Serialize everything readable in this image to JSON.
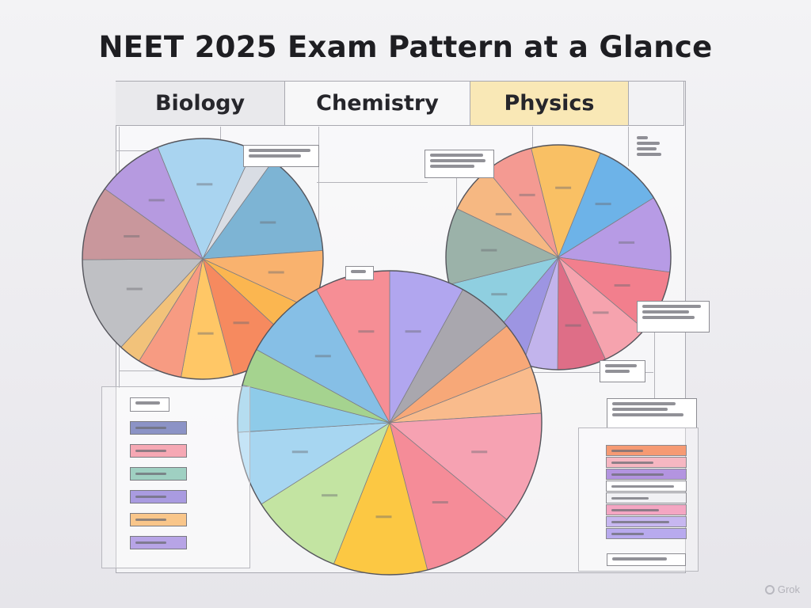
{
  "title": "NEET 2025 Exam Pattern at a Glance",
  "headers": {
    "biology": "Biology",
    "chemistry": "Chemistry",
    "physics": "Physics"
  },
  "watermark": "Grok",
  "colors": {
    "header_highlight": "#f9e8b6",
    "slice_stroke": "#7e7e84"
  },
  "chart_data": [
    {
      "type": "pie",
      "name_ref": "biology",
      "slices": [
        {
          "value": 13,
          "color": "#a9d4f0"
        },
        {
          "value": 3,
          "color": "#d9dde4"
        },
        {
          "value": 14,
          "color": "#7db4d4"
        },
        {
          "value": 8,
          "color": "#f9b26e"
        },
        {
          "value": 5,
          "color": "#fbb650"
        },
        {
          "value": 9,
          "color": "#f68a5f"
        },
        {
          "value": 7,
          "color": "#ffc766"
        },
        {
          "value": 6,
          "color": "#f79b82"
        },
        {
          "value": 3,
          "color": "#f2c27a"
        },
        {
          "value": 13,
          "color": "#bfc0c4"
        },
        {
          "value": 10,
          "color": "#c9979c"
        },
        {
          "value": 9,
          "color": "#b69ae0"
        }
      ]
    },
    {
      "type": "pie",
      "name_ref": "physics",
      "slices": [
        {
          "value": 10,
          "color": "#f9c064"
        },
        {
          "value": 10,
          "color": "#6db3e8"
        },
        {
          "value": 11,
          "color": "#b79be5"
        },
        {
          "value": 9,
          "color": "#f27f8d"
        },
        {
          "value": 7,
          "color": "#f6a3ae"
        },
        {
          "value": 7,
          "color": "#de6e87"
        },
        {
          "value": 5,
          "color": "#c2b4ec"
        },
        {
          "value": 6,
          "color": "#9d95e2"
        },
        {
          "value": 10,
          "color": "#8fcfe0"
        },
        {
          "value": 11,
          "color": "#9bb2a9"
        },
        {
          "value": 7,
          "color": "#f6b882"
        },
        {
          "value": 7,
          "color": "#f49a92"
        }
      ]
    },
    {
      "type": "pie",
      "name_ref": "chemistry",
      "slices": [
        {
          "value": 8,
          "color": "#b1a6ef"
        },
        {
          "value": 6,
          "color": "#a9a7ae"
        },
        {
          "value": 5,
          "color": "#f7a878"
        },
        {
          "value": 5,
          "color": "#f9bb8c"
        },
        {
          "value": 12,
          "color": "#f6a2b2"
        },
        {
          "value": 10,
          "color": "#f58c98"
        },
        {
          "value": 10,
          "color": "#fcc843"
        },
        {
          "value": 10,
          "color": "#c3e4a2"
        },
        {
          "value": 8,
          "color": "#a7d6f1"
        },
        {
          "value": 5,
          "color": "#8ecbe9"
        },
        {
          "value": 4,
          "color": "#a5d38f"
        },
        {
          "value": 9,
          "color": "#86bfe6"
        },
        {
          "value": 8,
          "color": "#f68e95"
        }
      ]
    }
  ],
  "legend_left": {
    "swatches": [
      "#8c93c6",
      "#f6a8b4",
      "#9fd0c2",
      "#a99be0",
      "#f9c68a",
      "#b7a4e6"
    ]
  },
  "legend_right": {
    "rows": [
      "#f69a73",
      "#f6b7c2",
      "#b394e0",
      "#ffffff",
      "#f1f1f4",
      "#f4a6c2",
      "#c7b7f0",
      "#b8aaee"
    ]
  }
}
